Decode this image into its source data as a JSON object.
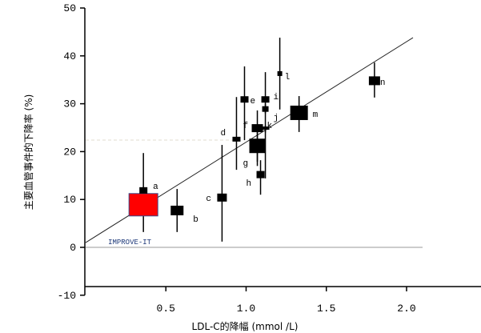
{
  "chart_data": {
    "type": "scatter",
    "title": "",
    "xlabel": "LDL-C的降幅 (mmol /L)",
    "ylabel": "主要血管事件的下降率 (%)",
    "xlim": [
      0,
      2.05
    ],
    "ylim": [
      -10,
      50
    ],
    "xticks": [
      "0.5",
      "1.0",
      "1.5",
      "2.0"
    ],
    "yticks": [
      "-10",
      "0",
      "10",
      "20",
      "30",
      "40",
      "50"
    ],
    "grid": false,
    "points": [
      {
        "label": "a",
        "x": 0.36,
        "y": 11.9,
        "lo": 3.2,
        "hi": 19.7
      },
      {
        "label": "b",
        "x": 0.57,
        "y": 7.7,
        "lo": 3.2,
        "hi": 12.2
      },
      {
        "label": "c",
        "x": 0.85,
        "y": 10.4,
        "lo": 1.2,
        "hi": 21.4
      },
      {
        "label": "d",
        "x": 0.94,
        "y": 22.6,
        "lo": 16.2,
        "hi": 31.4
      },
      {
        "label": "e",
        "x": 0.99,
        "y": 30.9,
        "lo": 22.4,
        "hi": 37.8
      },
      {
        "label": "f",
        "x": 1.07,
        "y": 24.9,
        "lo": 17.9,
        "hi": 28.6
      },
      {
        "label": "g",
        "x": 1.07,
        "y": 21.2,
        "lo": 17.0,
        "hi": 25.0
      },
      {
        "label": "h",
        "x": 1.09,
        "y": 15.2,
        "lo": 11.0,
        "hi": 18.2
      },
      {
        "label": "i",
        "x": 1.12,
        "y": 30.9,
        "lo": 14.4,
        "hi": 36.6
      },
      {
        "label": "j",
        "x": 1.12,
        "y": 28.9,
        "lo": 28.0,
        "hi": 30.0
      },
      {
        "label": "k",
        "x": 1.12,
        "y": 24.9,
        "lo": 24.0,
        "hi": 25.5
      },
      {
        "label": "l",
        "x": 1.21,
        "y": 36.3,
        "lo": 28.8,
        "hi": 43.8
      },
      {
        "label": "m",
        "x": 1.33,
        "y": 28.1,
        "lo": 24.1,
        "hi": 31.6
      },
      {
        "label": "n",
        "x": 1.8,
        "y": 34.8,
        "lo": 31.3,
        "hi": 38.6
      }
    ],
    "highlight": {
      "label": "IMPROVE-IT",
      "x": 0.36,
      "y": 8.9,
      "color": "#ff0000",
      "label_color": "#1f3a7a"
    },
    "regression_line": {
      "x": [
        0,
        2.04
      ],
      "y": [
        1.0,
        43.8
      ]
    },
    "reference_line_y": 0,
    "dashed_line_y": 22.4,
    "colors": {
      "marker": "#000000",
      "reference": "#9a9a9a",
      "dashed": "#e0dccf"
    }
  }
}
